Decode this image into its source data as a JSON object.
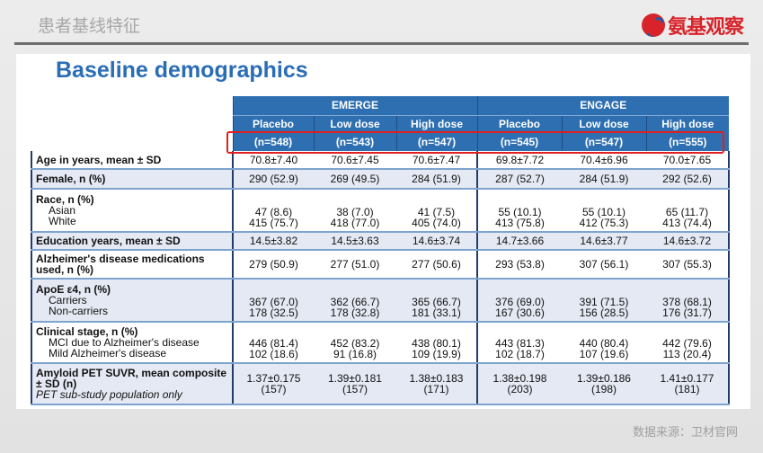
{
  "header": {
    "title": "患者基线特征",
    "logo_text": "氨基观察"
  },
  "slide_title": "Baseline demographics",
  "groups": [
    "EMERGE",
    "ENGAGE"
  ],
  "arms": [
    {
      "name": "Placebo",
      "n": "(n=548)"
    },
    {
      "name": "Low dose",
      "n": "(n=543)"
    },
    {
      "name": "High dose",
      "n": "(n=547)"
    },
    {
      "name": "Placebo",
      "n": "(n=545)"
    },
    {
      "name": "Low dose",
      "n": "(n=547)"
    },
    {
      "name": "High dose",
      "n": "(n=555)"
    }
  ],
  "rows": [
    {
      "label": "Age in years, mean ± SD",
      "values": [
        "70.8±7.40",
        "70.6±7.45",
        "70.6±7.47",
        "69.8±7.72",
        "70.4±6.96",
        "70.0±7.65"
      ]
    },
    {
      "label": "Female, n (%)",
      "values": [
        "290 (52.9)",
        "269 (49.5)",
        "284 (51.9)",
        "287 (52.7)",
        "284 (51.9)",
        "292 (52.6)"
      ]
    },
    {
      "label": "Race, n (%)",
      "sublabels": [
        "Asian",
        "White"
      ],
      "subvalues": [
        [
          "47 (8.6)",
          "38 (7.0)",
          "41 (7.5)",
          "55 (10.1)",
          "55 (10.1)",
          "65 (11.7)"
        ],
        [
          "415 (75.7)",
          "418 (77.0)",
          "405 (74.0)",
          "413 (75.8)",
          "412 (75.3)",
          "413 (74.4)"
        ]
      ]
    },
    {
      "label": "Education years, mean ± SD",
      "values": [
        "14.5±3.82",
        "14.5±3.63",
        "14.6±3.74",
        "14.7±3.66",
        "14.6±3.77",
        "14.6±3.72"
      ]
    },
    {
      "label": "Alzheimer's disease medications used, n (%)",
      "values": [
        "279 (50.9)",
        "277 (51.0)",
        "277 (50.6)",
        "293 (53.8)",
        "307 (56.1)",
        "307 (55.3)"
      ]
    },
    {
      "label": "ApoE ε4, n (%)",
      "sublabels": [
        "Carriers",
        "Non-carriers"
      ],
      "subvalues": [
        [
          "367 (67.0)",
          "362 (66.7)",
          "365 (66.7)",
          "376 (69.0)",
          "391 (71.5)",
          "378 (68.1)"
        ],
        [
          "178 (32.5)",
          "178 (32.8)",
          "181 (33.1)",
          "167 (30.6)",
          "156 (28.5)",
          "176 (31.7)"
        ]
      ]
    },
    {
      "label": "Clinical stage, n (%)",
      "sublabels": [
        "MCI due to Alzheimer's disease",
        "Mild Alzheimer's disease"
      ],
      "subvalues": [
        [
          "446 (81.4)",
          "452 (83.2)",
          "438 (80.1)",
          "443 (81.3)",
          "440 (80.4)",
          "442 (79.6)"
        ],
        [
          "102 (18.6)",
          "91 (16.8)",
          "109 (19.9)",
          "102 (18.7)",
          "107 (19.6)",
          "113 (20.4)"
        ]
      ]
    },
    {
      "label": "Amyloid PET SUVR, mean composite ± SD (n)",
      "note": "PET sub-study population only",
      "subvalues": [
        [
          "1.37±0.175",
          "1.39±0.181",
          "1.38±0.183",
          "1.38±0.198",
          "1.39±0.186",
          "1.41±0.177"
        ],
        [
          "(157)",
          "(157)",
          "(171)",
          "(203)",
          "(198)",
          "(181)"
        ]
      ]
    }
  ],
  "source": "数据来源：卫材官网",
  "colors": {
    "header_blue": "#2e6fb1",
    "title_blue": "#2a6db5",
    "highlight_red": "#e02020"
  }
}
